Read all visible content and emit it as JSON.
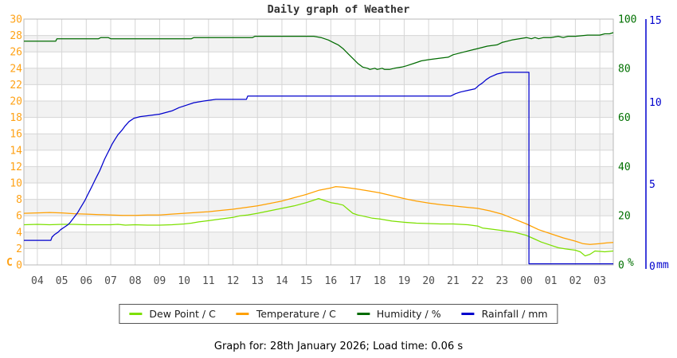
{
  "page": {
    "title": "Daily graph of Weather",
    "caption": "Graph for: 28th January 2026; Load time: 0.06 s"
  },
  "chart_data": {
    "type": "line",
    "title": "Daily graph of Weather",
    "grid": true,
    "legend_position": "bottom",
    "colors": {
      "grid": "#d6d6d6",
      "band": "#f2f2f2",
      "border": "#b8b8b8",
      "x_label": "#4d4d4d",
      "title": "#333333"
    },
    "x_axis": {
      "labels": [
        "04",
        "05",
        "06",
        "07",
        "08",
        "09",
        "10",
        "11",
        "12",
        "13",
        "14",
        "15",
        "16",
        "17",
        "18",
        "19",
        "20",
        "21",
        "22",
        "23",
        "00",
        "01",
        "02",
        "03"
      ],
      "first_label_hour": 4,
      "start_hour": 3.45,
      "end_hour": 27.55
    },
    "y_left": {
      "unit": "C",
      "min": 0,
      "max": 30,
      "step": 2,
      "color": "#ffa216"
    },
    "y_humidity": {
      "unit": "%",
      "min": 0,
      "max": 100,
      "step": 20,
      "color": "#007000"
    },
    "y_rain": {
      "unit": "mm",
      "min": 0,
      "max": 15,
      "step": 5,
      "color": "#0000cd"
    },
    "series": [
      {
        "name": "Dew Point / C",
        "color": "#7ce000",
        "axis": "left",
        "points": [
          [
            3.45,
            4.9
          ],
          [
            4,
            4.95
          ],
          [
            4.5,
            4.9
          ],
          [
            5,
            4.95
          ],
          [
            5.5,
            4.95
          ],
          [
            6,
            4.9
          ],
          [
            6.5,
            4.9
          ],
          [
            7,
            4.9
          ],
          [
            7.3,
            4.95
          ],
          [
            7.6,
            4.85
          ],
          [
            8,
            4.9
          ],
          [
            8.5,
            4.85
          ],
          [
            9,
            4.85
          ],
          [
            9.5,
            4.9
          ],
          [
            10,
            5.0
          ],
          [
            10.3,
            5.1
          ],
          [
            10.6,
            5.25
          ],
          [
            11,
            5.4
          ],
          [
            11.5,
            5.6
          ],
          [
            12,
            5.8
          ],
          [
            12.3,
            6.0
          ],
          [
            12.6,
            6.1
          ],
          [
            13,
            6.3
          ],
          [
            13.5,
            6.6
          ],
          [
            14,
            6.9
          ],
          [
            14.5,
            7.2
          ],
          [
            15,
            7.6
          ],
          [
            15.5,
            8.1
          ],
          [
            15.7,
            7.9
          ],
          [
            16,
            7.6
          ],
          [
            16.3,
            7.45
          ],
          [
            16.5,
            7.3
          ],
          [
            16.7,
            6.8
          ],
          [
            16.9,
            6.3
          ],
          [
            17.1,
            6.1
          ],
          [
            17.4,
            5.9
          ],
          [
            17.7,
            5.7
          ],
          [
            18,
            5.6
          ],
          [
            18.5,
            5.35
          ],
          [
            19,
            5.2
          ],
          [
            19.5,
            5.1
          ],
          [
            20,
            5.05
          ],
          [
            20.5,
            5.0
          ],
          [
            21,
            5.0
          ],
          [
            21.3,
            4.95
          ],
          [
            21.6,
            4.9
          ],
          [
            22,
            4.75
          ],
          [
            22.2,
            4.5
          ],
          [
            22.5,
            4.4
          ],
          [
            23,
            4.2
          ],
          [
            23.5,
            4.0
          ],
          [
            24,
            3.6
          ],
          [
            24.3,
            3.2
          ],
          [
            24.6,
            2.8
          ],
          [
            25,
            2.4
          ],
          [
            25.3,
            2.1
          ],
          [
            25.6,
            1.95
          ],
          [
            26,
            1.8
          ],
          [
            26.2,
            1.6
          ],
          [
            26.4,
            1.1
          ],
          [
            26.6,
            1.3
          ],
          [
            26.8,
            1.7
          ],
          [
            27,
            1.65
          ],
          [
            27.2,
            1.6
          ],
          [
            27.55,
            1.7
          ]
        ]
      },
      {
        "name": "Temperature / C",
        "color": "#ffa000",
        "axis": "left",
        "points": [
          [
            3.45,
            6.3
          ],
          [
            4,
            6.35
          ],
          [
            4.5,
            6.4
          ],
          [
            5,
            6.35
          ],
          [
            5.5,
            6.25
          ],
          [
            6,
            6.2
          ],
          [
            6.5,
            6.15
          ],
          [
            7,
            6.1
          ],
          [
            7.5,
            6.05
          ],
          [
            8,
            6.05
          ],
          [
            8.5,
            6.1
          ],
          [
            9,
            6.1
          ],
          [
            9.5,
            6.2
          ],
          [
            10,
            6.3
          ],
          [
            10.5,
            6.4
          ],
          [
            11,
            6.5
          ],
          [
            11.5,
            6.65
          ],
          [
            12,
            6.8
          ],
          [
            12.5,
            7.0
          ],
          [
            13,
            7.2
          ],
          [
            13.5,
            7.5
          ],
          [
            14,
            7.8
          ],
          [
            14.5,
            8.2
          ],
          [
            15,
            8.6
          ],
          [
            15.5,
            9.1
          ],
          [
            16,
            9.4
          ],
          [
            16.2,
            9.55
          ],
          [
            16.5,
            9.5
          ],
          [
            17,
            9.3
          ],
          [
            17.5,
            9.05
          ],
          [
            18,
            8.8
          ],
          [
            18.5,
            8.45
          ],
          [
            19,
            8.1
          ],
          [
            19.5,
            7.8
          ],
          [
            20,
            7.55
          ],
          [
            20.5,
            7.35
          ],
          [
            21,
            7.2
          ],
          [
            21.5,
            7.05
          ],
          [
            22,
            6.9
          ],
          [
            22.5,
            6.6
          ],
          [
            23,
            6.2
          ],
          [
            23.5,
            5.6
          ],
          [
            24,
            5.0
          ],
          [
            24.5,
            4.3
          ],
          [
            25,
            3.8
          ],
          [
            25.5,
            3.3
          ],
          [
            26,
            2.9
          ],
          [
            26.3,
            2.6
          ],
          [
            26.6,
            2.5
          ],
          [
            27,
            2.6
          ],
          [
            27.3,
            2.7
          ],
          [
            27.55,
            2.75
          ]
        ]
      },
      {
        "name": "Humidity / %",
        "color": "#006b00",
        "axis": "humidity",
        "points": [
          [
            3.45,
            91
          ],
          [
            4.75,
            91
          ],
          [
            4.8,
            92
          ],
          [
            6.5,
            92
          ],
          [
            6.6,
            92.5
          ],
          [
            6.9,
            92.5
          ],
          [
            7,
            92
          ],
          [
            10.3,
            92
          ],
          [
            10.4,
            92.5
          ],
          [
            12.8,
            92.5
          ],
          [
            12.9,
            93
          ],
          [
            15.3,
            93
          ],
          [
            15.6,
            92.5
          ],
          [
            15.9,
            91.5
          ],
          [
            16.1,
            90.5
          ],
          [
            16.3,
            89.5
          ],
          [
            16.5,
            88
          ],
          [
            16.7,
            86
          ],
          [
            16.9,
            84
          ],
          [
            17.1,
            82
          ],
          [
            17.3,
            80.5
          ],
          [
            17.5,
            80
          ],
          [
            17.6,
            79.5
          ],
          [
            17.8,
            80
          ],
          [
            17.9,
            79.5
          ],
          [
            18.1,
            80
          ],
          [
            18.2,
            79.5
          ],
          [
            18.4,
            79.5
          ],
          [
            18.6,
            80
          ],
          [
            18.9,
            80.5
          ],
          [
            19.1,
            81
          ],
          [
            19.4,
            82
          ],
          [
            19.7,
            83
          ],
          [
            20,
            83.5
          ],
          [
            20.4,
            84
          ],
          [
            20.8,
            84.5
          ],
          [
            21,
            85.5
          ],
          [
            21.4,
            86.5
          ],
          [
            21.8,
            87.5
          ],
          [
            22,
            88
          ],
          [
            22.4,
            89
          ],
          [
            22.8,
            89.5
          ],
          [
            23,
            90.5
          ],
          [
            23.4,
            91.5
          ],
          [
            23.7,
            92
          ],
          [
            24,
            92.5
          ],
          [
            24.2,
            92
          ],
          [
            24.35,
            92.5
          ],
          [
            24.5,
            92
          ],
          [
            24.7,
            92.5
          ],
          [
            25,
            92.5
          ],
          [
            25.3,
            93
          ],
          [
            25.5,
            92.5
          ],
          [
            25.7,
            93
          ],
          [
            26,
            93
          ],
          [
            26.5,
            93.5
          ],
          [
            27,
            93.5
          ],
          [
            27.2,
            94
          ],
          [
            27.4,
            94
          ],
          [
            27.55,
            94.5
          ]
        ]
      },
      {
        "name": "Rainfall / mm",
        "color": "#0000cd",
        "axis": "rain",
        "points": [
          [
            3.45,
            1.5
          ],
          [
            4.55,
            1.5
          ],
          [
            4.6,
            1.7
          ],
          [
            4.7,
            1.85
          ],
          [
            4.85,
            2.0
          ],
          [
            4.95,
            2.15
          ],
          [
            5.1,
            2.3
          ],
          [
            5.25,
            2.45
          ],
          [
            5.35,
            2.6
          ],
          [
            5.45,
            2.8
          ],
          [
            5.55,
            3.0
          ],
          [
            5.65,
            3.2
          ],
          [
            5.75,
            3.45
          ],
          [
            5.85,
            3.7
          ],
          [
            5.95,
            3.95
          ],
          [
            6.05,
            4.25
          ],
          [
            6.15,
            4.55
          ],
          [
            6.25,
            4.85
          ],
          [
            6.35,
            5.15
          ],
          [
            6.45,
            5.45
          ],
          [
            6.55,
            5.75
          ],
          [
            6.65,
            6.1
          ],
          [
            6.75,
            6.45
          ],
          [
            6.85,
            6.75
          ],
          [
            6.95,
            7.05
          ],
          [
            7.05,
            7.35
          ],
          [
            7.15,
            7.6
          ],
          [
            7.3,
            7.95
          ],
          [
            7.45,
            8.2
          ],
          [
            7.6,
            8.5
          ],
          [
            7.75,
            8.75
          ],
          [
            7.95,
            8.95
          ],
          [
            8.2,
            9.05
          ],
          [
            8.5,
            9.1
          ],
          [
            9,
            9.2
          ],
          [
            9.5,
            9.4
          ],
          [
            9.8,
            9.6
          ],
          [
            10.1,
            9.75
          ],
          [
            10.4,
            9.9
          ],
          [
            10.8,
            10.0
          ],
          [
            11.3,
            10.1
          ],
          [
            12.55,
            10.1
          ],
          [
            12.6,
            10.3
          ],
          [
            20.9,
            10.3
          ],
          [
            21.1,
            10.45
          ],
          [
            21.3,
            10.55
          ],
          [
            21.6,
            10.65
          ],
          [
            21.9,
            10.75
          ],
          [
            22.05,
            10.95
          ],
          [
            22.2,
            11.1
          ],
          [
            22.35,
            11.3
          ],
          [
            22.5,
            11.45
          ],
          [
            22.65,
            11.55
          ],
          [
            22.8,
            11.65
          ],
          [
            23.1,
            11.75
          ],
          [
            24.1,
            11.75
          ],
          [
            24.1,
            0.07
          ],
          [
            27.55,
            0.07
          ]
        ]
      }
    ]
  }
}
